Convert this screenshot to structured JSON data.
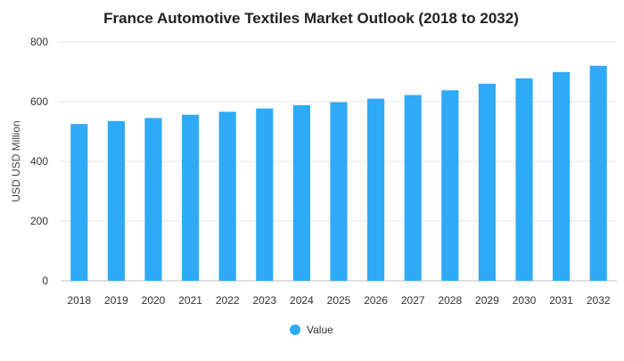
{
  "chart_data": {
    "type": "bar",
    "title": "France Automotive Textiles Market Outlook (2018 to 2032)",
    "xlabel": "",
    "ylabel": "USD USD Million",
    "ylim": [
      0,
      800
    ],
    "yticks": [
      0,
      200,
      400,
      600,
      800
    ],
    "grid": true,
    "legend_position": "bottom",
    "categories": [
      "2018",
      "2019",
      "2020",
      "2021",
      "2022",
      "2023",
      "2024",
      "2025",
      "2026",
      "2027",
      "2028",
      "2029",
      "2030",
      "2031",
      "2032"
    ],
    "series": [
      {
        "name": "Value",
        "color": "#2eaaf7",
        "values": [
          525,
          535,
          545,
          556,
          566,
          577,
          588,
          598,
          610,
          622,
          638,
          660,
          678,
          699,
          720
        ]
      }
    ]
  }
}
